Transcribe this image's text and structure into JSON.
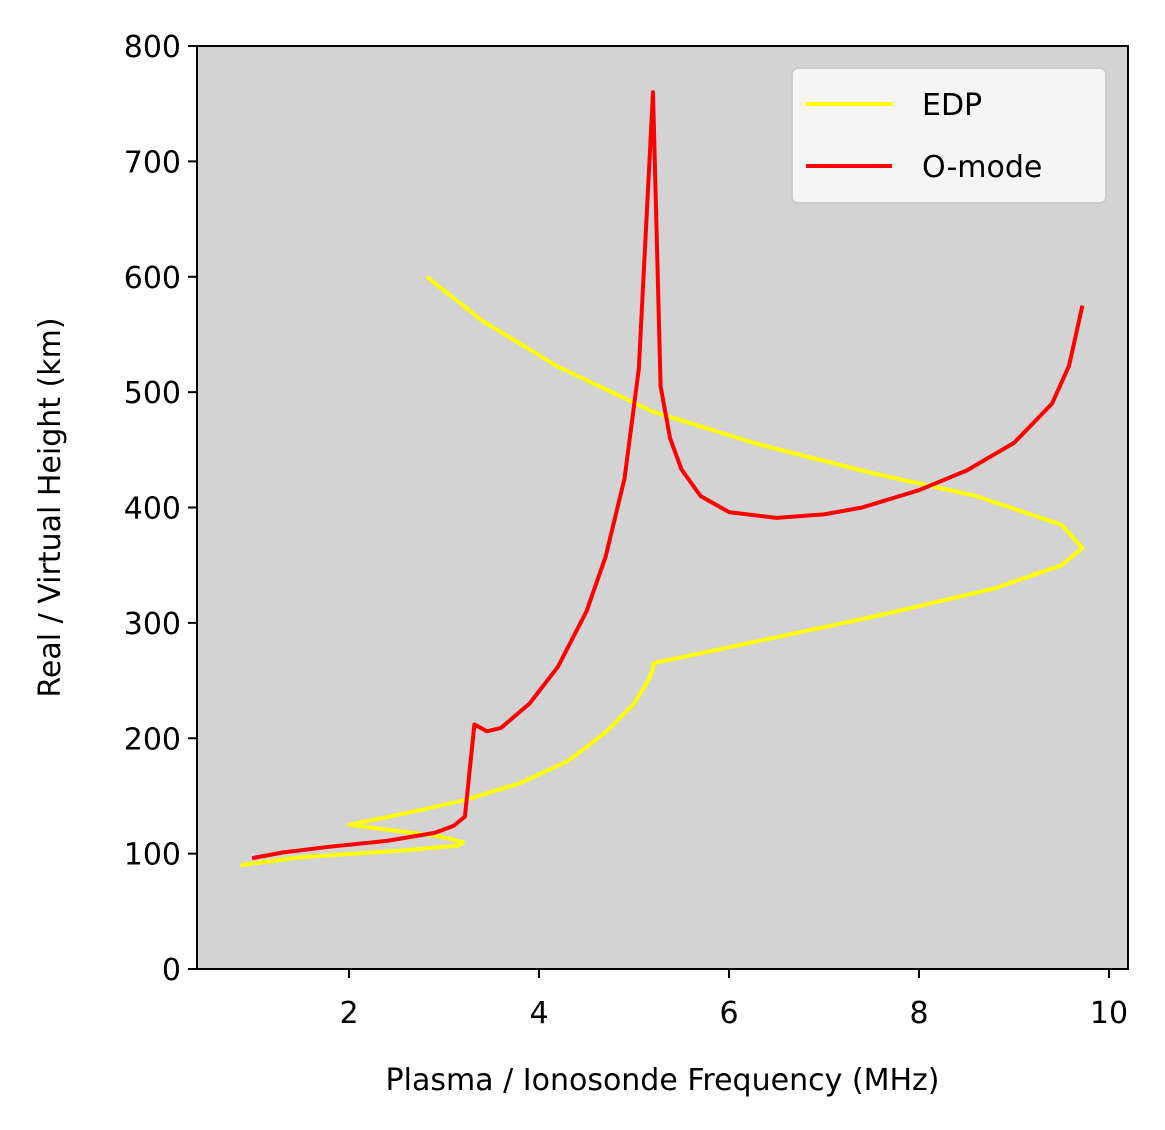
{
  "chart_data": {
    "type": "line",
    "xlabel": "Plasma / Ionosonde Frequency (MHz)",
    "ylabel": "Real / Virtual Height (km)",
    "xlim": [
      0.4,
      10.2
    ],
    "ylim": [
      0,
      800
    ],
    "xticks": [
      2,
      4,
      6,
      8,
      10
    ],
    "yticks": [
      0,
      100,
      200,
      300,
      400,
      500,
      600,
      700,
      800
    ],
    "grid": false,
    "legend_position": "top-right",
    "plot_background": "#d3d3d3",
    "series": [
      {
        "name": "EDP",
        "color": "#ffff00",
        "x": [
          0.85,
          1.5,
          2.6,
          3.15,
          3.2,
          2.95,
          2.0,
          2.6,
          3.2,
          3.8,
          4.3,
          4.7,
          5.0,
          5.15,
          5.2,
          5.2,
          7.5,
          8.8,
          9.5,
          9.72,
          9.5,
          8.6,
          7.5,
          6.3,
          5.2,
          4.2,
          3.4,
          2.82
        ],
        "y": [
          90,
          97,
          103,
          107,
          110,
          115,
          125,
          135,
          146,
          161,
          180,
          205,
          230,
          250,
          260,
          265,
          305,
          330,
          350,
          365,
          385,
          410,
          430,
          455,
          483,
          522,
          562,
          600
        ]
      },
      {
        "name": "O-mode",
        "color": "#ff0000",
        "x": [
          0.98,
          1.3,
          1.8,
          2.4,
          2.9,
          3.1,
          3.22,
          3.32,
          3.45,
          3.6,
          3.9,
          4.2,
          4.5,
          4.7,
          4.9,
          5.05,
          5.2,
          5.28,
          5.38,
          5.5,
          5.7,
          6.0,
          6.5,
          7.0,
          7.4,
          8.0,
          8.5,
          9.0,
          9.4,
          9.58,
          9.72
        ],
        "y": [
          96,
          101,
          106,
          111,
          118,
          124,
          132,
          212,
          206,
          209,
          230,
          262,
          310,
          357,
          425,
          520,
          760,
          505,
          460,
          433,
          410,
          396,
          391,
          394,
          400,
          415,
          432,
          456,
          490,
          523,
          575
        ]
      }
    ]
  }
}
